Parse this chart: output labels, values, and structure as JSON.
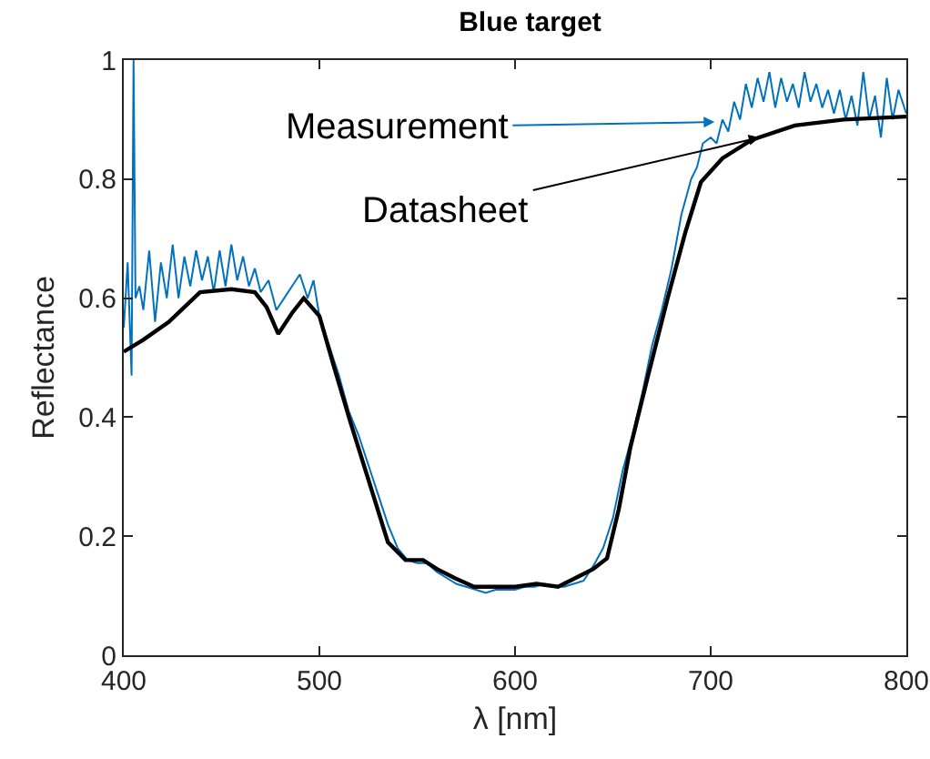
{
  "chart_data": {
    "type": "line",
    "title": "Blue target",
    "xlabel": "λ [nm]",
    "ylabel": "Reflectance",
    "xlim": [
      400,
      800
    ],
    "xticks": [
      400,
      500,
      600,
      700,
      800
    ],
    "ylim": [
      0,
      1
    ],
    "yticks": [
      0,
      0.2,
      0.4,
      0.6,
      0.8,
      1
    ],
    "grid": false,
    "marker": "none",
    "line_style": "solid",
    "series": [
      {
        "color": "#0072bd",
        "x": [
          400,
          402,
          404,
          405,
          406,
          408,
          410,
          413,
          416,
          419,
          422,
          425,
          428,
          431,
          434,
          437,
          440,
          443,
          446,
          449,
          452,
          455,
          458,
          461,
          464,
          467,
          470,
          474,
          478,
          482,
          486,
          490,
          494,
          497,
          500,
          505,
          510,
          515,
          520,
          525,
          530,
          535,
          540,
          545,
          550,
          555,
          560,
          565,
          570,
          575,
          580,
          585,
          590,
          595,
          600,
          605,
          610,
          615,
          620,
          625,
          630,
          635,
          640,
          645,
          650,
          655,
          660,
          665,
          670,
          675,
          680,
          685,
          690,
          693,
          696,
          700,
          703,
          706,
          709,
          712,
          715,
          718,
          721,
          724,
          727,
          730,
          733,
          736,
          739,
          742,
          745,
          748,
          751,
          754,
          757,
          760,
          763,
          766,
          769,
          772,
          775,
          778,
          781,
          784,
          787,
          790,
          793,
          796,
          800
        ],
        "values": [
          0.55,
          0.66,
          0.47,
          1.0,
          0.6,
          0.62,
          0.58,
          0.68,
          0.56,
          0.66,
          0.6,
          0.69,
          0.6,
          0.67,
          0.62,
          0.68,
          0.63,
          0.67,
          0.61,
          0.68,
          0.62,
          0.69,
          0.63,
          0.67,
          0.62,
          0.65,
          0.61,
          0.63,
          0.58,
          0.6,
          0.62,
          0.64,
          0.6,
          0.63,
          0.57,
          0.52,
          0.47,
          0.41,
          0.37,
          0.32,
          0.27,
          0.22,
          0.18,
          0.16,
          0.155,
          0.155,
          0.14,
          0.13,
          0.12,
          0.115,
          0.11,
          0.105,
          0.11,
          0.11,
          0.11,
          0.115,
          0.115,
          0.12,
          0.115,
          0.115,
          0.12,
          0.125,
          0.15,
          0.18,
          0.23,
          0.31,
          0.37,
          0.44,
          0.52,
          0.58,
          0.65,
          0.74,
          0.8,
          0.82,
          0.86,
          0.87,
          0.86,
          0.9,
          0.88,
          0.93,
          0.9,
          0.96,
          0.92,
          0.97,
          0.93,
          0.98,
          0.92,
          0.97,
          0.93,
          0.96,
          0.92,
          0.98,
          0.93,
          0.96,
          0.92,
          0.95,
          0.91,
          0.95,
          0.9,
          0.94,
          0.89,
          0.98,
          0.9,
          0.94,
          0.87,
          0.97,
          0.9,
          0.95,
          0.91
        ]
      },
      {
        "color": "#000000",
        "x": [
          400,
          410,
          423,
          439,
          455,
          467,
          473,
          479,
          486,
          492,
          500,
          507,
          516,
          526,
          535,
          544,
          553,
          560,
          569,
          579,
          590,
          600,
          611,
          622,
          634,
          640,
          647,
          653,
          659,
          668,
          678,
          687,
          695,
          706,
          721,
          743,
          768,
          800
        ],
        "values": [
          0.51,
          0.53,
          0.56,
          0.61,
          0.615,
          0.61,
          0.585,
          0.54,
          0.575,
          0.6,
          0.57,
          0.49,
          0.39,
          0.285,
          0.19,
          0.16,
          0.16,
          0.145,
          0.13,
          0.115,
          0.115,
          0.115,
          0.12,
          0.115,
          0.135,
          0.145,
          0.163,
          0.245,
          0.35,
          0.47,
          0.6,
          0.71,
          0.795,
          0.835,
          0.866,
          0.89,
          0.9,
          0.905
        ]
      }
    ],
    "annotations": [
      {
        "text": "Measurement",
        "x": 702,
        "y": 0.896
      },
      {
        "text": "Datasheet",
        "x": 725,
        "y": 0.87
      }
    ]
  }
}
